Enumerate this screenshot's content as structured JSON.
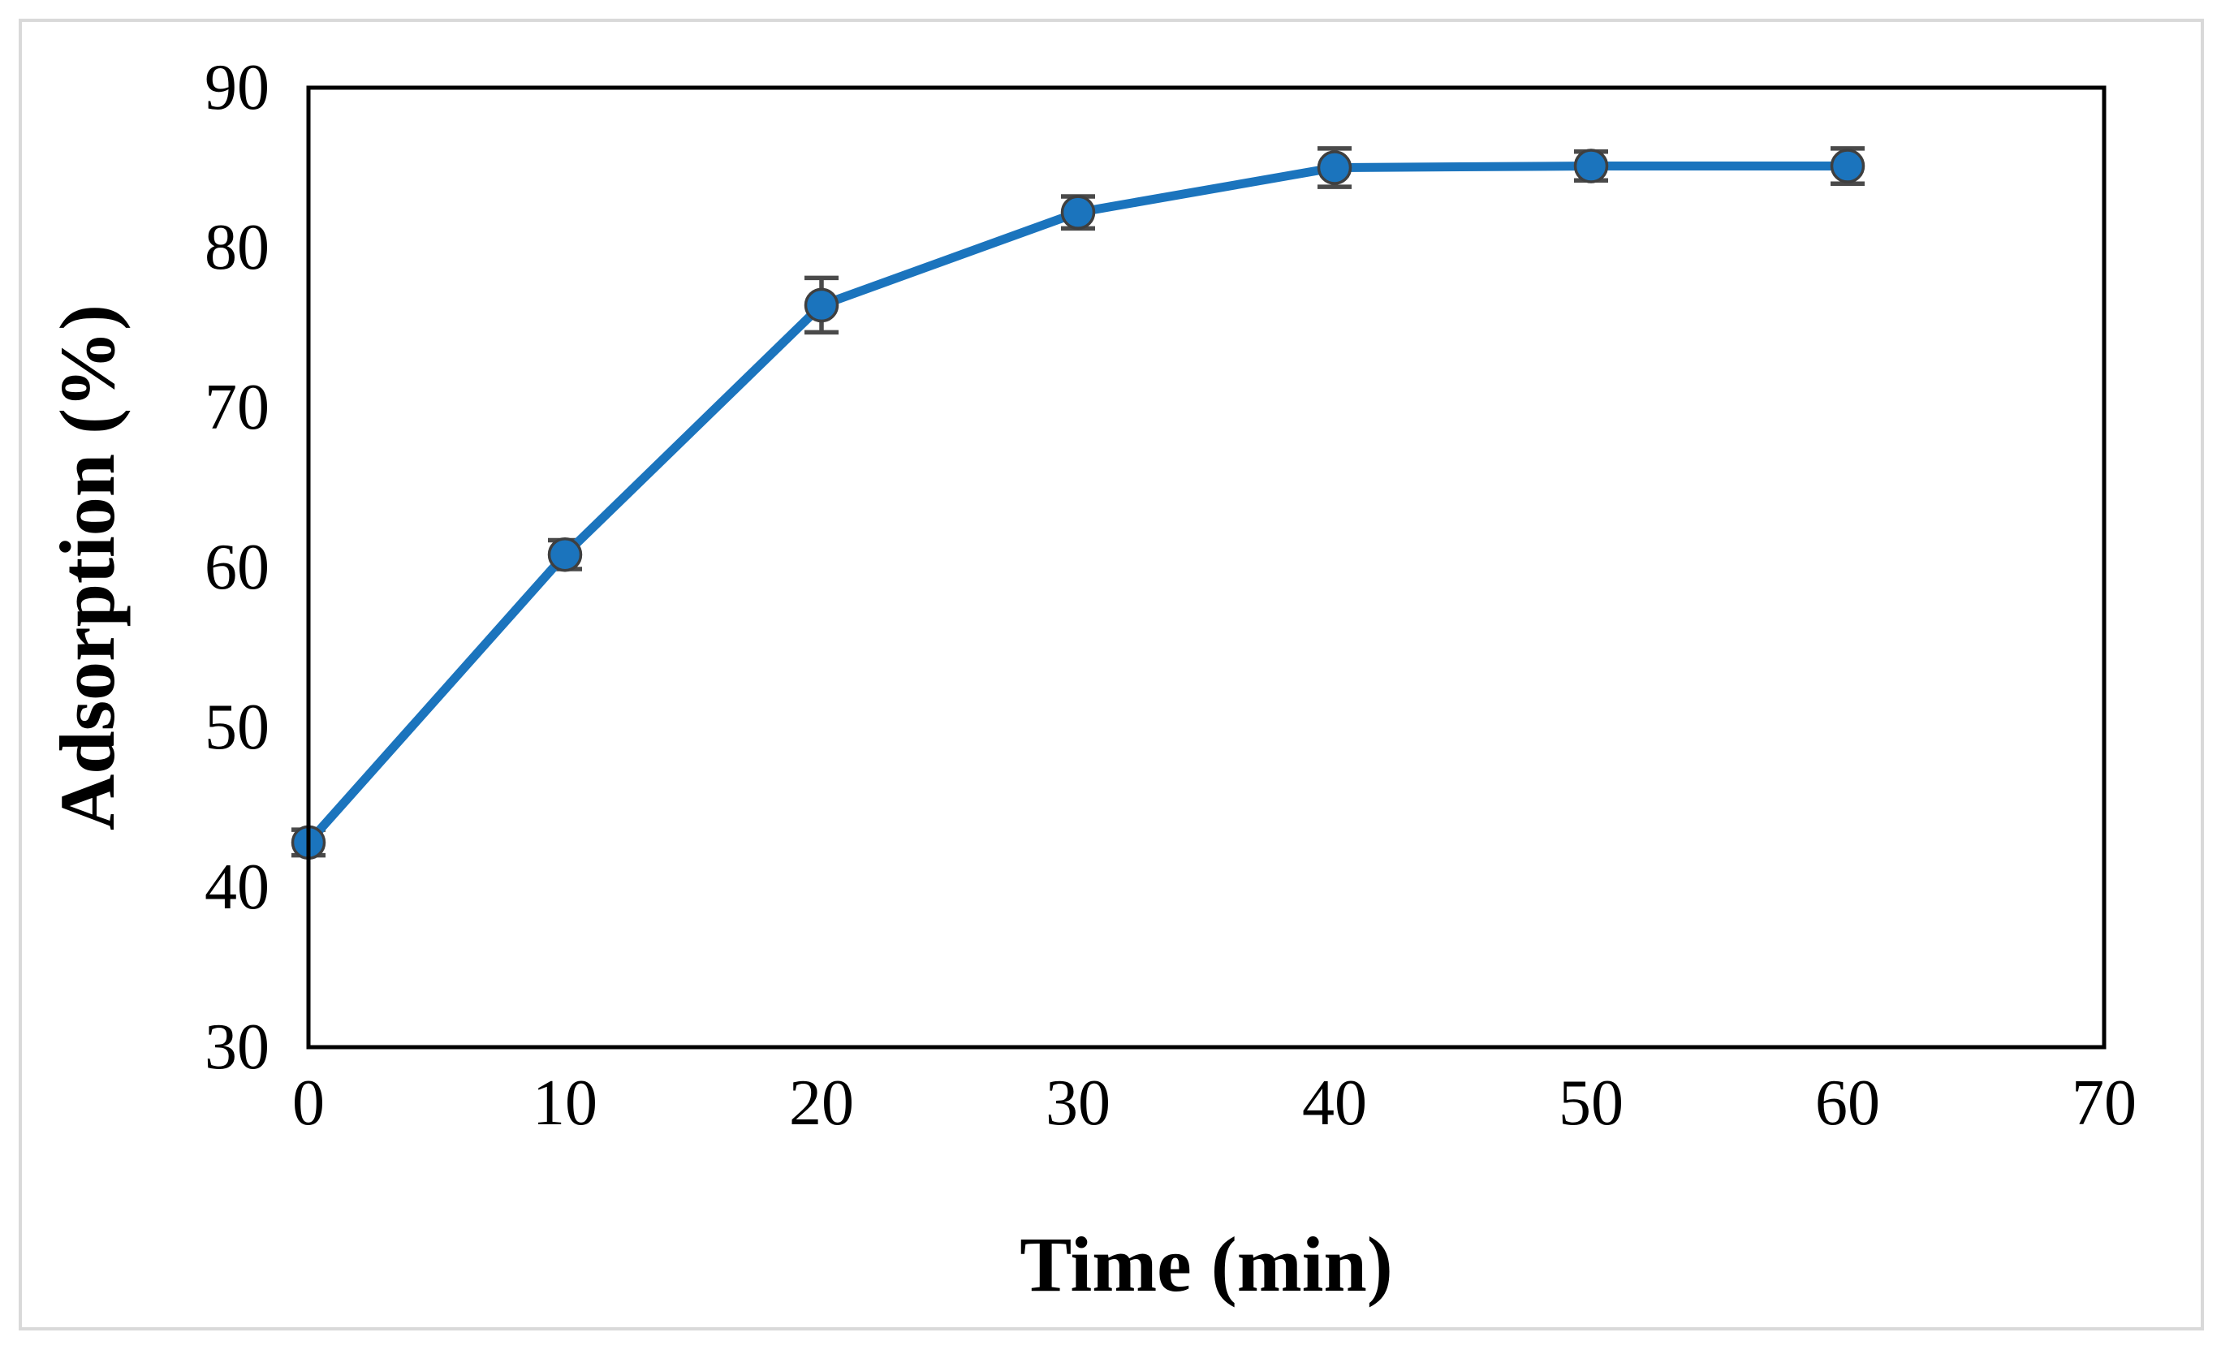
{
  "figure": {
    "kind": "scientific line chart",
    "background": "#FFFFFF",
    "border_color": "#D9D9D9",
    "frame_color": "#000000"
  },
  "chart_data": {
    "type": "line",
    "title": "",
    "xlabel": "Time (min)",
    "ylabel": "Adsorption (%)",
    "x": [
      0,
      10,
      20,
      30,
      40,
      50,
      60
    ],
    "series": [
      {
        "name": "Adsorption",
        "values": [
          42.8,
          60.8,
          76.4,
          82.2,
          85.0,
          85.1,
          85.1
        ],
        "error_bars": [
          0.8,
          0.9,
          1.7,
          1.0,
          1.2,
          0.9,
          1.1
        ],
        "line_color": "#1B74BD",
        "marker": "circle",
        "marker_fill": "#1B74BD",
        "marker_stroke": "#3F3F3F",
        "error_color": "#4A4A4A"
      }
    ],
    "xlim": [
      0,
      70
    ],
    "ylim": [
      30,
      90
    ],
    "x_ticks": [
      0,
      10,
      20,
      30,
      40,
      50,
      60,
      70
    ],
    "y_ticks": [
      30,
      40,
      50,
      60,
      70,
      80,
      90
    ],
    "grid": false,
    "legend": false,
    "axis_color": "#000000",
    "tick_label_color": "#000000"
  }
}
